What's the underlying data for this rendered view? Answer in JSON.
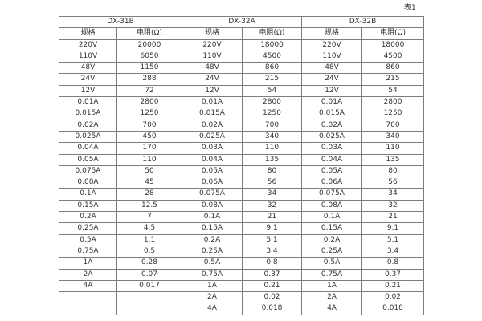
{
  "caption": "表1",
  "table": {
    "groups": [
      {
        "title": "DX-31B",
        "spec_header": "规格",
        "res_header": "电阻(Ω)"
      },
      {
        "title": "DX-32A",
        "spec_header": "规格",
        "res_header": "电阻(Ω)"
      },
      {
        "title": "DX-32B",
        "spec_header": "规格",
        "res_header": "电阻(Ω)"
      }
    ],
    "rows": [
      [
        "220V",
        "20000",
        "220V",
        "18000",
        "220V",
        "18000"
      ],
      [
        "110V",
        "6050",
        "110V",
        "4500",
        "110V",
        "4500"
      ],
      [
        "48V",
        "1150",
        "48V",
        "860",
        "48V",
        "860"
      ],
      [
        "24V",
        "288",
        "24V",
        "215",
        "24V",
        "215"
      ],
      [
        "12V",
        "72",
        "12V",
        "54",
        "12V",
        "54"
      ],
      [
        "0.01A",
        "2800",
        "0.01A",
        "2800",
        "0.01A",
        "2800"
      ],
      [
        "0.015A",
        "1250",
        "0.015A",
        "1250",
        "0.015A",
        "1250"
      ],
      [
        "0.02A",
        "700",
        "0.02A",
        "700",
        "0.02A",
        "700"
      ],
      [
        "0.025A",
        "450",
        "0.025A",
        "340",
        "0.025A",
        "340"
      ],
      [
        "0.04A",
        "170",
        "0.03A",
        "110",
        "0.03A",
        "110"
      ],
      [
        "0.05A",
        "110",
        "0.04A",
        "135",
        "0.04A",
        "135"
      ],
      [
        "0.075A",
        "50",
        "0.05A",
        "80",
        "0.05A",
        "80"
      ],
      [
        "0.08A",
        "45",
        "0.06A",
        "56",
        "0.06A",
        "56"
      ],
      [
        "0.1A",
        "28",
        "0.075A",
        "34",
        "0.075A",
        "34"
      ],
      [
        "0.15A",
        "12.5",
        "0.08A",
        "32",
        "0.08A",
        "32"
      ],
      [
        "0.2A",
        "7",
        "0.1A",
        "21",
        "0.1A",
        "21"
      ],
      [
        "0.25A",
        "4.5",
        "0.15A",
        "9.1",
        "0.15A",
        "9.1"
      ],
      [
        "0.5A",
        "1.1",
        "0.2A",
        "5.1",
        "0.2A",
        "5.1"
      ],
      [
        "0.75A",
        "0.5",
        "0.25A",
        "3.4",
        "0.25A",
        "3.4"
      ],
      [
        "1A",
        "0.28",
        "0.5A",
        "0.8",
        "0.5A",
        "0.8"
      ],
      [
        "2A",
        "0.07",
        "0.75A",
        "0.37",
        "0.75A",
        "0.37"
      ],
      [
        "4A",
        "0.017",
        "1A",
        "0.21",
        "1A",
        "0.21"
      ],
      [
        "",
        "",
        "2A",
        "0.02",
        "2A",
        "0.02"
      ],
      [
        "",
        "",
        "4A",
        "0.018",
        "4A",
        "0.018"
      ]
    ]
  }
}
